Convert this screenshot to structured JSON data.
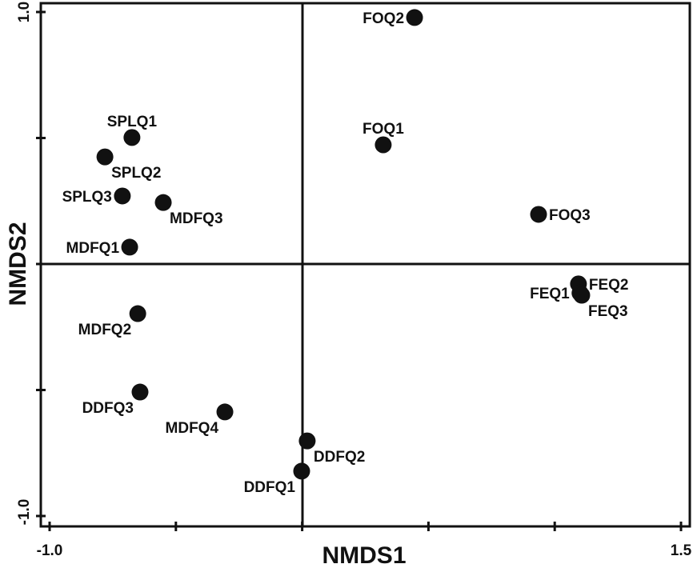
{
  "chart_data": {
    "type": "scatter",
    "title": "",
    "xlabel": "NMDS1",
    "ylabel": "NMDS2",
    "xlim": [
      -1.0,
      1.5
    ],
    "ylim": [
      -1.0,
      1.0
    ],
    "x_tick_labels": [
      "-1.0",
      "1.5"
    ],
    "y_tick_labels": [
      "1.0",
      "-1.0"
    ],
    "x_ticks": [
      -1.0,
      -0.5,
      0.0,
      0.5,
      1.0,
      1.5
    ],
    "y_ticks": [
      1.0,
      0.5,
      0.0,
      -0.5,
      -1.0
    ],
    "grid": false,
    "reference_lines": {
      "x": 0.0,
      "y": 0.0
    },
    "legend": null,
    "marker_color": "#111111",
    "points": [
      {
        "label": "FOQ2",
        "x": 0.445,
        "y": 0.978,
        "label_pos": "left"
      },
      {
        "label": "FOQ1",
        "x": 0.321,
        "y": 0.473,
        "label_pos": "above"
      },
      {
        "label": "FOQ3",
        "x": 0.936,
        "y": 0.197,
        "label_pos": "right"
      },
      {
        "label": "SPLQ1",
        "x": -0.674,
        "y": 0.502,
        "label_pos": "above"
      },
      {
        "label": "SPLQ2",
        "x": -0.781,
        "y": 0.425,
        "label_pos": "below-right"
      },
      {
        "label": "SPLQ3",
        "x": -0.712,
        "y": 0.27,
        "label_pos": "left"
      },
      {
        "label": "MDFQ3",
        "x": -0.55,
        "y": 0.244,
        "label_pos": "below-right"
      },
      {
        "label": "MDFQ1",
        "x": -0.683,
        "y": 0.067,
        "label_pos": "left"
      },
      {
        "label": "MDFQ2",
        "x": -0.651,
        "y": -0.197,
        "label_pos": "below-left"
      },
      {
        "label": "DDFQ3",
        "x": -0.642,
        "y": -0.508,
        "label_pos": "below-left"
      },
      {
        "label": "MDFQ4",
        "x": -0.306,
        "y": -0.587,
        "label_pos": "below-left"
      },
      {
        "label": "DDFQ2",
        "x": 0.02,
        "y": -0.702,
        "label_pos": "below-right"
      },
      {
        "label": "DDFQ1",
        "x": -0.002,
        "y": -0.822,
        "label_pos": "below-left"
      },
      {
        "label": "FEQ2",
        "x": 1.094,
        "y": -0.079,
        "label_pos": "right"
      },
      {
        "label": "FEQ1",
        "x": 1.1,
        "y": -0.115,
        "label_pos": "left"
      },
      {
        "label": "FEQ3",
        "x": 1.107,
        "y": -0.124,
        "label_pos": "below-right"
      }
    ]
  }
}
